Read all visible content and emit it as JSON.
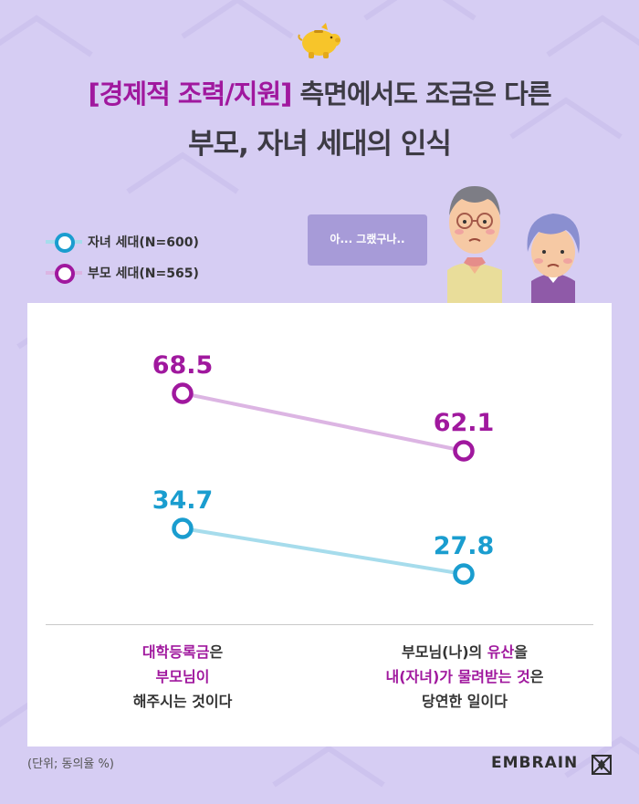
{
  "title": {
    "highlight": "[경제적 조력/지원]",
    "line1_rest": " 측면에서도 조금은 다른",
    "line2": "부모, 자녀 세대의 인식"
  },
  "bubble_text": "아... 그랬구나..",
  "unit_note": "(단위; 동의율 %)",
  "brand": "EMBRAIN",
  "colors": {
    "parents": "#a0189e",
    "parents_line": "#dcb5e3",
    "children": "#1a9dcf",
    "children_line": "#a6dcec",
    "accent": "#a0189e"
  },
  "categories": [
    {
      "parts": [
        {
          "text": "대학등록금",
          "hl": true
        },
        {
          "text": "은",
          "hl": false
        }
      ],
      "line2": [
        {
          "text": "부모님이",
          "hl": true
        }
      ],
      "line3": [
        {
          "text": "해주시는 것이다",
          "hl": false
        }
      ]
    },
    {
      "parts": [
        {
          "text": "부모님(나)의 ",
          "hl": false
        },
        {
          "text": "유산",
          "hl": true
        },
        {
          "text": "을",
          "hl": false
        }
      ],
      "line2": [
        {
          "text": "내(자녀)가 물려받는 것",
          "hl": true
        },
        {
          "text": "은",
          "hl": false
        }
      ],
      "line3": [
        {
          "text": "당연한 일이다",
          "hl": false
        }
      ]
    }
  ],
  "chart_data": {
    "type": "line",
    "categories": [
      "대학등록금은 부모님이 해주시는 것이다",
      "부모님(나)의 유산을 내(자녀)가 물려받는 것은 당연한 일이다"
    ],
    "series": [
      {
        "name": "자녀 세대(N=600)",
        "values": [
          34.7,
          27.8
        ]
      },
      {
        "name": "부모 세대(N=565)",
        "values": [
          68.5,
          62.1
        ]
      }
    ],
    "unit": "%"
  }
}
